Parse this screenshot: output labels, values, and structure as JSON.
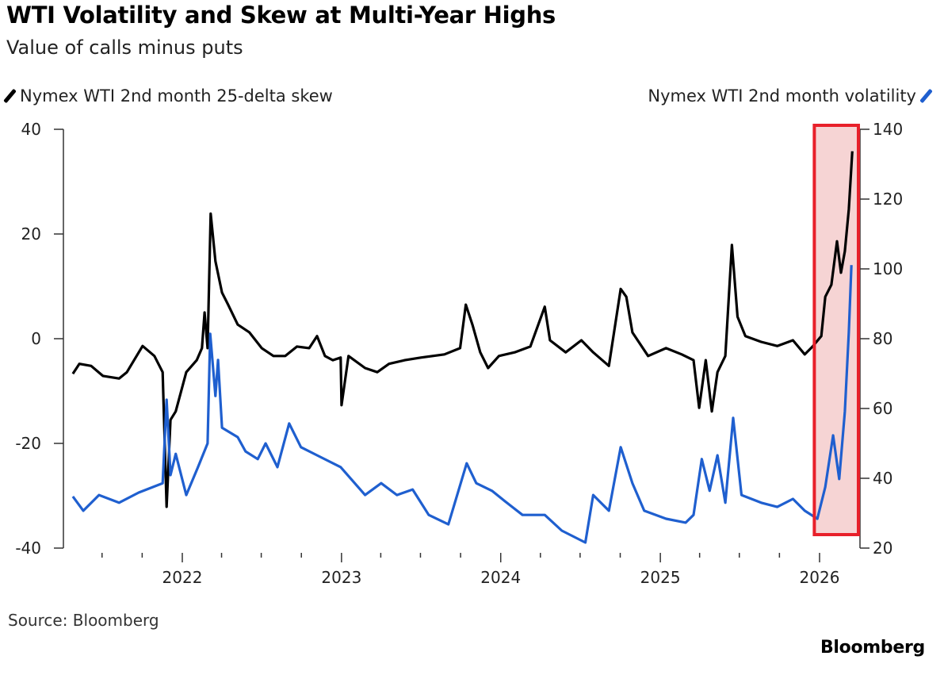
{
  "chart_data": {
    "type": "line",
    "title": "WTI Volatility and Skew at Multi-Year Highs",
    "subtitle": "Value of calls minus puts",
    "source": "Source: Bloomberg",
    "logo": "Bloomberg",
    "legend_placement": "top",
    "grid": false,
    "x_axis": {
      "type": "date",
      "range": [
        "2021-04-01",
        "2026-03-31"
      ],
      "tick_labels": [
        "2022",
        "2023",
        "2024",
        "2025",
        "2026"
      ]
    },
    "y_left": {
      "range": [
        -40,
        40
      ],
      "tick_labels": [
        "40",
        "20",
        "0",
        "-20",
        "-40"
      ]
    },
    "y_right": {
      "range": [
        20,
        140
      ],
      "tick_labels": [
        "140",
        "120",
        "100",
        "80",
        "60",
        "40",
        "20"
      ]
    },
    "highlight": {
      "range": [
        "2025-12-20",
        "2026-03-31"
      ],
      "color": "#e8202a",
      "fill": "#f4c9c9"
    },
    "series": [
      {
        "name": "Nymex WTI 2nd month 25-delta skew",
        "axis": "left",
        "color": "#000000",
        "x": [
          "2021-04-25",
          "2021-05-10",
          "2021-06-06",
          "2021-07-03",
          "2021-08-09",
          "2021-08-27",
          "2021-10-02",
          "2021-10-29",
          "2021-11-17",
          "2021-11-26",
          "2021-12-05",
          "2021-12-17",
          "2022-01-10",
          "2022-02-03",
          "2022-02-15",
          "2022-02-21",
          "2022-02-28",
          "2022-03-07",
          "2022-03-18",
          "2022-04-02",
          "2022-04-16",
          "2022-05-08",
          "2022-06-04",
          "2022-07-02",
          "2022-07-29",
          "2022-08-25",
          "2022-09-21",
          "2022-10-19",
          "2022-11-06",
          "2022-11-24",
          "2022-12-12",
          "2022-12-30",
          "2023-01-01",
          "2023-01-17",
          "2023-02-24",
          "2023-03-24",
          "2023-04-20",
          "2023-05-26",
          "2023-07-02",
          "2023-08-25",
          "2023-09-30",
          "2023-10-13",
          "2023-10-28",
          "2023-11-15",
          "2023-12-03",
          "2023-12-28",
          "2024-02-02",
          "2024-03-09",
          "2024-04-11",
          "2024-04-23",
          "2024-05-29",
          "2024-07-04",
          "2024-07-31",
          "2024-09-05",
          "2024-10-02",
          "2024-10-15",
          "2024-10-29",
          "2024-12-04",
          "2025-01-14",
          "2025-02-19",
          "2025-03-18",
          "2025-03-31",
          "2025-04-15",
          "2025-04-29",
          "2025-05-12",
          "2025-05-30",
          "2025-06-14",
          "2025-06-27",
          "2025-07-15",
          "2025-08-20",
          "2025-09-26",
          "2025-11-01",
          "2025-11-28",
          "2025-12-16",
          "2026-01-05",
          "2026-01-14",
          "2026-01-28",
          "2026-02-10",
          "2026-02-19",
          "2026-02-28",
          "2026-03-09",
          "2026-03-17"
        ],
        "y": [
          -6.7,
          -4.8,
          -5.2,
          -7.1,
          -7.6,
          -6.4,
          -1.4,
          -3.3,
          -6.4,
          -32.1,
          -15.5,
          -13.9,
          -6.4,
          -4.1,
          -1.8,
          5.0,
          -1.8,
          23.9,
          14.8,
          8.8,
          6.5,
          2.7,
          1.2,
          -1.8,
          -3.3,
          -3.3,
          -1.5,
          -1.8,
          0.5,
          -3.3,
          -4.1,
          -3.6,
          -12.7,
          -3.3,
          -5.6,
          -6.4,
          -4.8,
          -4.1,
          -3.6,
          -3.0,
          -1.8,
          6.5,
          2.7,
          -2.6,
          -5.6,
          -3.3,
          -2.6,
          -1.5,
          6.1,
          -0.3,
          -2.6,
          -0.3,
          -2.6,
          -5.2,
          9.5,
          8.0,
          1.2,
          -3.3,
          -1.8,
          -3.0,
          -4.1,
          -13.2,
          -4.1,
          -13.9,
          -6.4,
          -3.3,
          17.9,
          4.2,
          0.5,
          -0.6,
          -1.4,
          -0.3,
          -3.0,
          -1.5,
          0.5,
          8.0,
          10.3,
          18.6,
          12.6,
          16.7,
          24.7,
          35.8
        ]
      },
      {
        "name": "Nymex WTI 2nd month volatility",
        "axis": "right",
        "color": "#1f5fcf",
        "x": [
          "2021-04-25",
          "2021-05-19",
          "2021-06-24",
          "2021-08-09",
          "2021-09-23",
          "2021-11-17",
          "2021-11-26",
          "2021-12-05",
          "2021-12-17",
          "2022-01-10",
          "2022-02-06",
          "2022-02-28",
          "2022-03-06",
          "2022-03-18",
          "2022-03-24",
          "2022-04-02",
          "2022-05-08",
          "2022-05-26",
          "2022-06-23",
          "2022-07-11",
          "2022-08-07",
          "2022-09-03",
          "2022-09-30",
          "2022-11-06",
          "2022-12-30",
          "2023-02-24",
          "2023-04-02",
          "2023-05-08",
          "2023-06-13",
          "2023-07-20",
          "2023-09-03",
          "2023-10-15",
          "2023-11-06",
          "2023-12-12",
          "2024-01-15",
          "2024-02-20",
          "2024-04-11",
          "2024-05-20",
          "2024-07-13",
          "2024-07-31",
          "2024-09-05",
          "2024-10-02",
          "2024-10-29",
          "2024-11-25",
          "2025-01-14",
          "2025-02-28",
          "2025-03-18",
          "2025-04-06",
          "2025-04-24",
          "2025-05-12",
          "2025-05-30",
          "2025-06-17",
          "2025-07-06",
          "2025-08-20",
          "2025-09-26",
          "2025-11-01",
          "2025-11-28",
          "2025-12-27",
          "2026-01-14",
          "2026-02-01",
          "2026-02-15",
          "2026-02-28",
          "2026-03-09",
          "2026-03-15"
        ],
        "y": [
          34.8,
          30.7,
          35.2,
          33.0,
          35.9,
          38.6,
          62.5,
          40.9,
          47.0,
          35.2,
          43.2,
          50.0,
          81.4,
          63.6,
          73.9,
          54.5,
          51.8,
          47.7,
          45.5,
          50.0,
          43.2,
          55.7,
          48.9,
          46.6,
          43.2,
          35.2,
          38.6,
          35.2,
          36.8,
          29.5,
          26.8,
          44.3,
          38.6,
          36.4,
          33.0,
          29.5,
          29.5,
          25.0,
          21.6,
          35.2,
          30.7,
          48.9,
          38.6,
          30.7,
          28.4,
          27.3,
          29.5,
          45.5,
          36.4,
          46.6,
          33.0,
          57.3,
          35.2,
          33.0,
          31.8,
          34.1,
          30.7,
          28.4,
          37.5,
          52.3,
          39.8,
          59.1,
          81.8,
          101.1
        ]
      }
    ]
  }
}
